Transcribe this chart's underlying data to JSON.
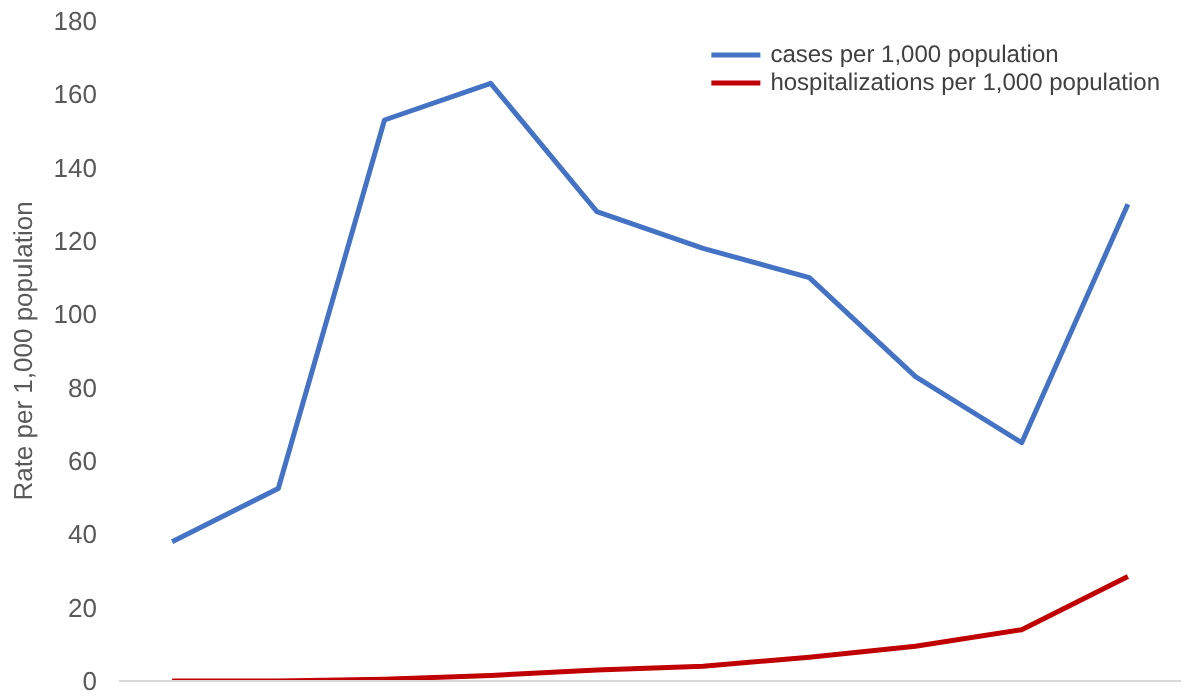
{
  "chart_data": {
    "type": "line",
    "ylabel": "Rate per 1,000 population",
    "categories": [
      null,
      null,
      null,
      null,
      null,
      null,
      null,
      null,
      null,
      null
    ],
    "series": [
      {
        "name": "cases per 1,000 population",
        "color": "#4472c4",
        "values": [
          38,
          52.5,
          153,
          163,
          128,
          118,
          110,
          83,
          65,
          130
        ]
      },
      {
        "name": "hospitalizations per 1,000 population",
        "color": "#c00000",
        "values": [
          0,
          0,
          0.5,
          1.5,
          3,
          4,
          6.5,
          9.5,
          14,
          28.5
        ]
      }
    ],
    "ylim": [
      0,
      180
    ],
    "yticks": [
      0,
      20,
      40,
      60,
      80,
      100,
      120,
      140,
      160,
      180
    ],
    "grid": false,
    "legend": "top right",
    "tick_labels": "y",
    "marker": "none",
    "line_style": "solid"
  }
}
